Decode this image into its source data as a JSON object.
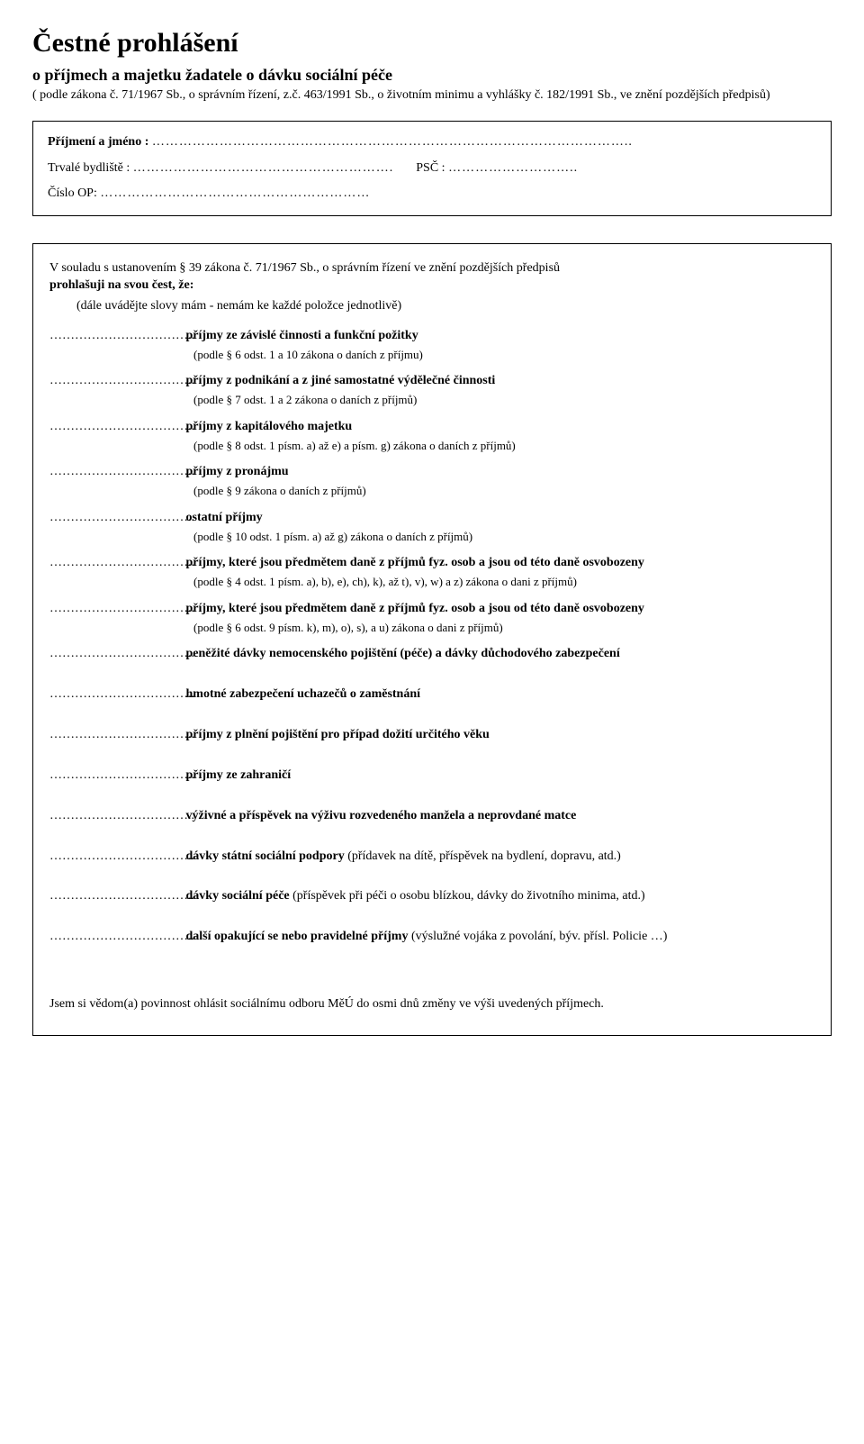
{
  "header": {
    "title": "Čestné prohlášení",
    "subtitle": "o příjmech a majetku žadatele o dávku sociální péče",
    "legal": "( podle zákona č. 71/1967 Sb., o správním řízení, z.č. 463/1991 Sb., o životním minimu a vyhlášky č. 182/1991 Sb., ve znění pozdějších předpisů)"
  },
  "personal": {
    "surname_label": "Příjmení a jméno :",
    "residence_label": "Trvalé bydliště :",
    "psc_label": "PSČ :",
    "op_label": "Číslo OP:"
  },
  "body": {
    "intro_a": "V souladu s ustanovením § 39 zákona č. 71/1967 Sb., o správním řízení ve znění pozdějších předpisů",
    "intro_b": "prohlašuji na svou čest, že:",
    "instruct": "(dále uvádějte slovy        mám        -        nemám        ke každé položce jednotlivě)",
    "items": [
      {
        "label": "příjmy ze závislé činnosti a funkční požitky",
        "legal": "(podle § 6 odst. 1 a 10 zákona o daních z příjmu)"
      },
      {
        "label": "příjmy z podnikání a z jiné samostatné výdělečné činnosti",
        "legal": "(podle § 7 odst. 1 a 2 zákona o daních z příjmů)"
      },
      {
        "label": "příjmy z kapitálového majetku",
        "legal": "(podle § 8 odst. 1 písm. a) až e) a písm. g) zákona o daních z příjmů)"
      },
      {
        "label": "příjmy z pronájmu",
        "legal": "(podle § 9 zákona o daních z příjmů)"
      },
      {
        "label": "ostatní příjmy",
        "legal": "(podle § 10 odst. 1 písm. a) až g) zákona o daních z příjmů)"
      },
      {
        "label": "příjmy, které jsou předmětem daně z příjmů fyz. osob a jsou od této daně osvobozeny",
        "legal": "(podle § 4 odst. 1 písm. a), b), e), ch), k), až t), v), w) a z) zákona o dani z příjmů)"
      },
      {
        "label": "příjmy, které jsou předmětem daně z příjmů fyz. osob a jsou od této daně osvobozeny",
        "legal": "(podle § 6 odst. 9 písm. k), m), o), s), a u) zákona o dani z příjmů)"
      }
    ],
    "simple_items": [
      "peněžité dávky nemocenského pojištění (péče) a dávky důchodového zabezpečení",
      "hmotné zabezpečení uchazečů o zaměstnání",
      "příjmy z plnění pojištění pro případ dožití určitého věku",
      "příjmy ze zahraničí",
      "výživné a příspěvek na výživu rozvedeného manžela a neprovdané matce"
    ],
    "mixed_items": [
      {
        "bold": "dávky státní sociální podpory",
        "rest": " (přídavek na dítě, příspěvek na bydlení, dopravu, atd.)"
      },
      {
        "bold": "dávky sociální péče",
        "rest": " (příspěvek při péči o osobu blízkou, dávky do životního minima, atd.)"
      },
      {
        "bold": "další opakující se nebo pravidelné příjmy",
        "rest": " (výslužné vojáka z povolání, býv. přísl. Policie …)"
      }
    ],
    "final_note": "Jsem si vědom(a) povinnost ohlásit sociálnímu odboru MěÚ do osmi dnů změny ve výši uvedených příjmech."
  }
}
